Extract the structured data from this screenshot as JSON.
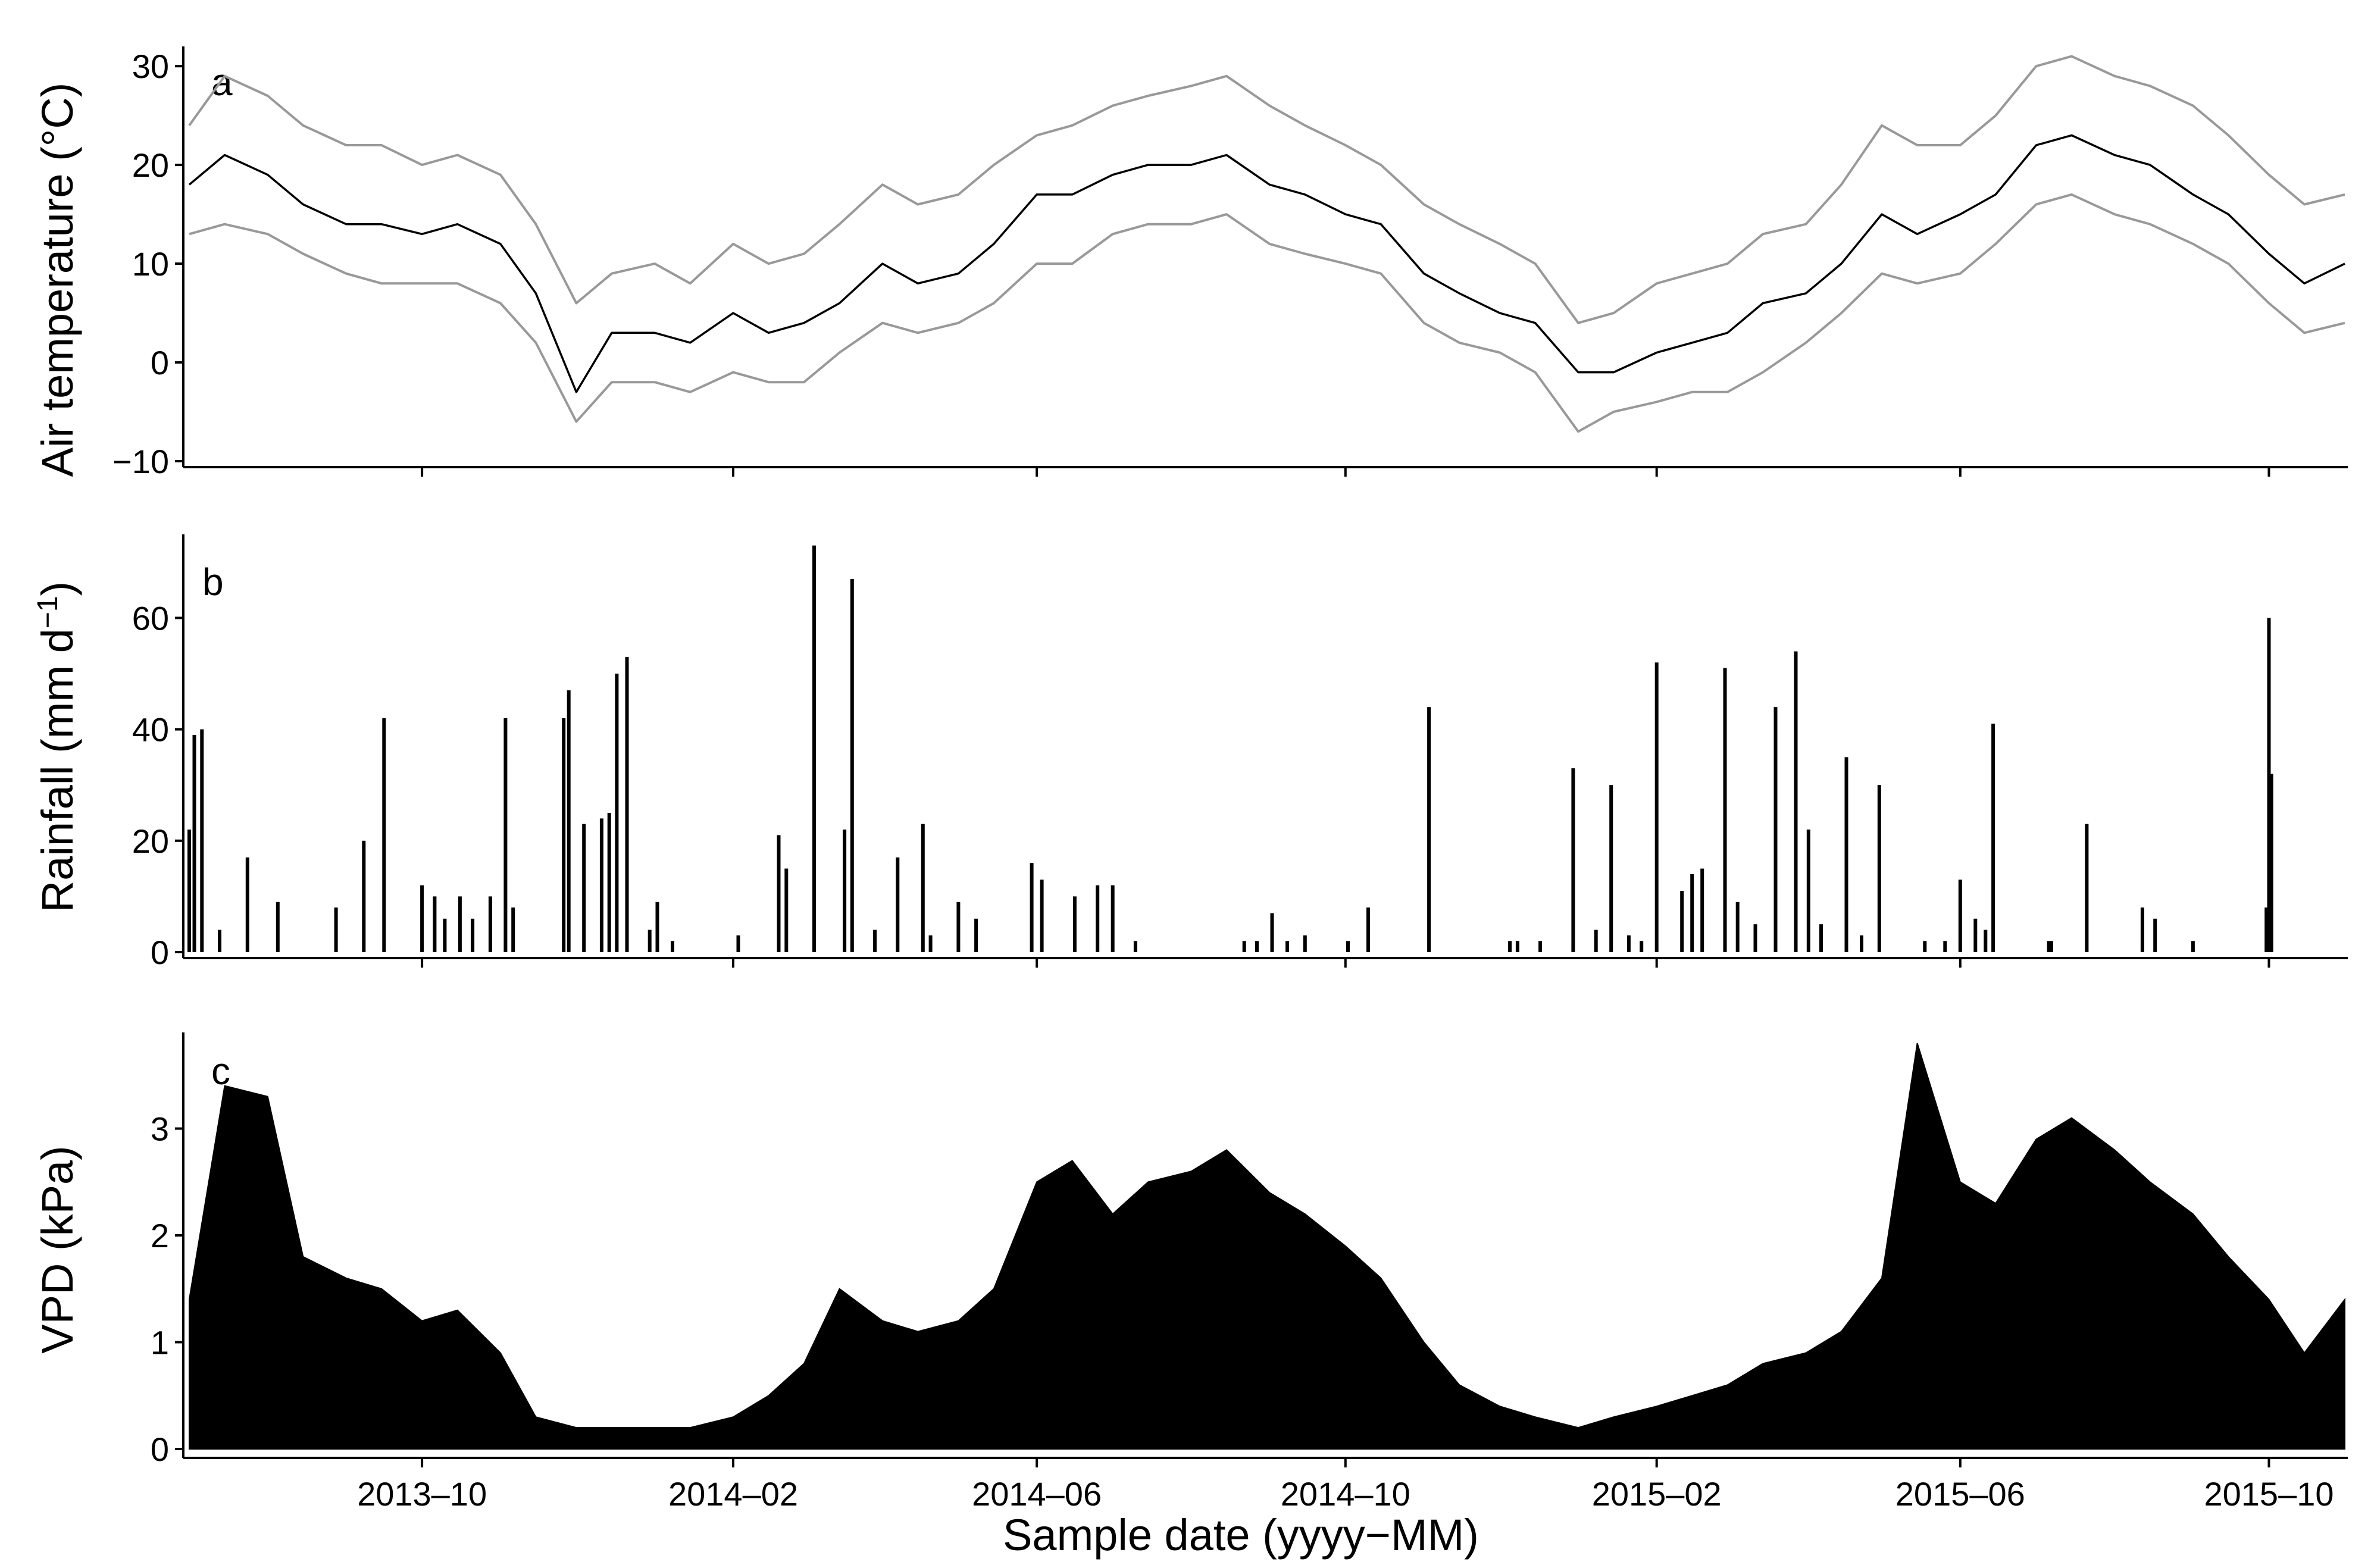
{
  "chart_data": [
    {
      "type": "line",
      "panel_label": "a",
      "ylabel": "Air temperature (°C)",
      "ylim": [
        -10,
        32
      ],
      "yticks": [
        -10,
        0,
        10,
        20,
        30
      ],
      "ytick_labels": [
        "−10",
        "0",
        "10",
        "20",
        "30"
      ],
      "date_range": [
        "2013-07-01",
        "2015-10-31"
      ],
      "series": [
        {
          "role": "daily maximum",
          "color": "#999999",
          "x": [
            "2013-07-01",
            "2013-07-15",
            "2013-08-01",
            "2013-08-15",
            "2013-09-01",
            "2013-09-15",
            "2013-10-01",
            "2013-10-15",
            "2013-11-01",
            "2013-11-15",
            "2013-12-01",
            "2013-12-15",
            "2014-01-01",
            "2014-01-15",
            "2014-02-01",
            "2014-02-15",
            "2014-03-01",
            "2014-03-15",
            "2014-04-01",
            "2014-04-15",
            "2014-05-01",
            "2014-05-15",
            "2014-06-01",
            "2014-06-15",
            "2014-07-01",
            "2014-07-15",
            "2014-08-01",
            "2014-08-15",
            "2014-09-01",
            "2014-09-15",
            "2014-10-01",
            "2014-10-15",
            "2014-11-01",
            "2014-11-15",
            "2014-12-01",
            "2014-12-15",
            "2015-01-01",
            "2015-01-15",
            "2015-02-01",
            "2015-02-15",
            "2015-03-01",
            "2015-03-15",
            "2015-04-01",
            "2015-04-15",
            "2015-05-01",
            "2015-05-15",
            "2015-06-01",
            "2015-06-15",
            "2015-07-01",
            "2015-07-15",
            "2015-08-01",
            "2015-08-15",
            "2015-09-01",
            "2015-09-15",
            "2015-10-01",
            "2015-10-15",
            "2015-10-31"
          ],
          "values": [
            24,
            29,
            27,
            24,
            22,
            22,
            20,
            21,
            19,
            14,
            6,
            9,
            10,
            8,
            12,
            10,
            11,
            14,
            18,
            16,
            17,
            20,
            23,
            24,
            26,
            27,
            28,
            29,
            26,
            24,
            22,
            20,
            16,
            14,
            12,
            10,
            4,
            5,
            8,
            9,
            10,
            13,
            14,
            18,
            24,
            22,
            22,
            25,
            30,
            31,
            29,
            28,
            26,
            23,
            19,
            16,
            17
          ]
        },
        {
          "role": "daily mean",
          "color": "#000000",
          "x": [
            "2013-07-01",
            "2013-07-15",
            "2013-08-01",
            "2013-08-15",
            "2013-09-01",
            "2013-09-15",
            "2013-10-01",
            "2013-10-15",
            "2013-11-01",
            "2013-11-15",
            "2013-12-01",
            "2013-12-15",
            "2014-01-01",
            "2014-01-15",
            "2014-02-01",
            "2014-02-15",
            "2014-03-01",
            "2014-03-15",
            "2014-04-01",
            "2014-04-15",
            "2014-05-01",
            "2014-05-15",
            "2014-06-01",
            "2014-06-15",
            "2014-07-01",
            "2014-07-15",
            "2014-08-01",
            "2014-08-15",
            "2014-09-01",
            "2014-09-15",
            "2014-10-01",
            "2014-10-15",
            "2014-11-01",
            "2014-11-15",
            "2014-12-01",
            "2014-12-15",
            "2015-01-01",
            "2015-01-15",
            "2015-02-01",
            "2015-02-15",
            "2015-03-01",
            "2015-03-15",
            "2015-04-01",
            "2015-04-15",
            "2015-05-01",
            "2015-05-15",
            "2015-06-01",
            "2015-06-15",
            "2015-07-01",
            "2015-07-15",
            "2015-08-01",
            "2015-08-15",
            "2015-09-01",
            "2015-09-15",
            "2015-10-01",
            "2015-10-15",
            "2015-10-31"
          ],
          "values": [
            18,
            21,
            19,
            16,
            14,
            14,
            13,
            14,
            12,
            7,
            -3,
            3,
            3,
            2,
            5,
            3,
            4,
            6,
            10,
            8,
            9,
            12,
            17,
            17,
            19,
            20,
            20,
            21,
            18,
            17,
            15,
            14,
            9,
            7,
            5,
            4,
            -1,
            -1,
            1,
            2,
            3,
            6,
            7,
            10,
            15,
            13,
            15,
            17,
            22,
            23,
            21,
            20,
            17,
            15,
            11,
            8,
            10
          ]
        },
        {
          "role": "daily minimum",
          "color": "#999999",
          "x": [
            "2013-07-01",
            "2013-07-15",
            "2013-08-01",
            "2013-08-15",
            "2013-09-01",
            "2013-09-15",
            "2013-10-01",
            "2013-10-15",
            "2013-11-01",
            "2013-11-15",
            "2013-12-01",
            "2013-12-15",
            "2014-01-01",
            "2014-01-15",
            "2014-02-01",
            "2014-02-15",
            "2014-03-01",
            "2014-03-15",
            "2014-04-01",
            "2014-04-15",
            "2014-05-01",
            "2014-05-15",
            "2014-06-01",
            "2014-06-15",
            "2014-07-01",
            "2014-07-15",
            "2014-08-01",
            "2014-08-15",
            "2014-09-01",
            "2014-09-15",
            "2014-10-01",
            "2014-10-15",
            "2014-11-01",
            "2014-11-15",
            "2014-12-01",
            "2014-12-15",
            "2015-01-01",
            "2015-01-15",
            "2015-02-01",
            "2015-02-15",
            "2015-03-01",
            "2015-03-15",
            "2015-04-01",
            "2015-04-15",
            "2015-05-01",
            "2015-05-15",
            "2015-06-01",
            "2015-06-15",
            "2015-07-01",
            "2015-07-15",
            "2015-08-01",
            "2015-08-15",
            "2015-09-01",
            "2015-09-15",
            "2015-10-01",
            "2015-10-15",
            "2015-10-31"
          ],
          "values": [
            13,
            14,
            13,
            11,
            9,
            8,
            8,
            8,
            6,
            2,
            -6,
            -2,
            -2,
            -3,
            -1,
            -2,
            -2,
            1,
            4,
            3,
            4,
            6,
            10,
            10,
            13,
            14,
            14,
            15,
            12,
            11,
            10,
            9,
            4,
            2,
            1,
            -1,
            -7,
            -5,
            -4,
            -3,
            -3,
            -1,
            2,
            5,
            9,
            8,
            9,
            12,
            16,
            17,
            15,
            14,
            12,
            10,
            6,
            3,
            4
          ]
        }
      ]
    },
    {
      "type": "bar",
      "panel_label": "b",
      "ylabel": "Rainfall (mm d",
      "ylabel_superscript": "−1",
      "ylabel_suffix": ")",
      "ylim": [
        0,
        75
      ],
      "yticks": [
        0,
        20,
        40,
        60
      ],
      "ytick_labels": [
        "0",
        "20",
        "40",
        "60"
      ],
      "date_range": [
        "2013-07-01",
        "2015-10-31"
      ],
      "color": "#000000",
      "x": [
        "2013-07-01",
        "2013-07-03",
        "2013-07-06",
        "2013-07-13",
        "2013-07-24",
        "2013-08-05",
        "2013-08-28",
        "2013-09-08",
        "2013-09-16",
        "2013-10-01",
        "2013-10-06",
        "2013-10-10",
        "2013-10-16",
        "2013-10-21",
        "2013-10-28",
        "2013-11-03",
        "2013-11-06",
        "2013-11-26",
        "2013-11-28",
        "2013-12-04",
        "2013-12-11",
        "2013-12-14",
        "2013-12-17",
        "2013-12-21",
        "2013-12-30",
        "2014-01-02",
        "2014-01-08",
        "2014-02-03",
        "2014-02-19",
        "2014-02-22",
        "2014-03-05",
        "2014-03-17",
        "2014-03-20",
        "2014-03-29",
        "2014-04-07",
        "2014-04-17",
        "2014-04-20",
        "2014-05-01",
        "2014-05-08",
        "2014-05-30",
        "2014-06-03",
        "2014-06-16",
        "2014-06-25",
        "2014-07-01",
        "2014-07-10",
        "2014-08-22",
        "2014-08-27",
        "2014-09-02",
        "2014-09-08",
        "2014-09-15",
        "2014-10-02",
        "2014-10-10",
        "2014-11-03",
        "2014-12-05",
        "2014-12-08",
        "2014-12-17",
        "2014-12-30",
        "2015-01-08",
        "2015-01-14",
        "2015-01-21",
        "2015-01-26",
        "2015-02-01",
        "2015-02-11",
        "2015-02-15",
        "2015-02-19",
        "2015-02-28",
        "2015-03-05",
        "2015-03-12",
        "2015-03-20",
        "2015-03-28",
        "2015-04-02",
        "2015-04-07",
        "2015-04-17",
        "2015-04-23",
        "2015-04-30",
        "2015-05-18",
        "2015-05-26",
        "2015-06-01",
        "2015-06-07",
        "2015-06-11",
        "2015-06-14",
        "2015-07-06",
        "2015-07-07",
        "2015-07-21",
        "2015-08-12",
        "2015-08-17",
        "2015-09-01",
        "2015-09-30",
        "2015-10-01",
        "2015-10-02"
      ],
      "values": [
        22,
        39,
        40,
        4,
        17,
        9,
        8,
        20,
        42,
        12,
        10,
        6,
        10,
        6,
        10,
        42,
        8,
        42,
        47,
        23,
        24,
        25,
        50,
        53,
        4,
        9,
        2,
        3,
        21,
        15,
        73,
        22,
        67,
        4,
        17,
        23,
        3,
        9,
        6,
        16,
        13,
        10,
        12,
        12,
        2,
        2,
        2,
        7,
        2,
        3,
        2,
        8,
        44,
        2,
        2,
        2,
        33,
        4,
        30,
        3,
        2,
        52,
        11,
        14,
        15,
        51,
        9,
        5,
        44,
        54,
        22,
        5,
        35,
        3,
        30,
        2,
        2,
        13,
        6,
        4,
        41,
        2,
        2,
        23,
        8,
        6,
        2,
        8,
        60,
        32
      ]
    },
    {
      "type": "area",
      "panel_label": "c",
      "ylabel": "VPD (kPa)",
      "ylim": [
        0,
        3.9
      ],
      "yticks": [
        0,
        1,
        2,
        3
      ],
      "ytick_labels": [
        "0",
        "1",
        "2",
        "3"
      ],
      "date_range": [
        "2013-07-01",
        "2015-10-31"
      ],
      "color": "#000000",
      "x": [
        "2013-07-01",
        "2013-07-15",
        "2013-08-01",
        "2013-08-15",
        "2013-09-01",
        "2013-09-15",
        "2013-10-01",
        "2013-10-15",
        "2013-11-01",
        "2013-11-15",
        "2013-12-01",
        "2013-12-15",
        "2014-01-01",
        "2014-01-15",
        "2014-02-01",
        "2014-02-15",
        "2014-03-01",
        "2014-03-15",
        "2014-04-01",
        "2014-04-15",
        "2014-05-01",
        "2014-05-15",
        "2014-06-01",
        "2014-06-15",
        "2014-07-01",
        "2014-07-15",
        "2014-08-01",
        "2014-08-15",
        "2014-09-01",
        "2014-09-15",
        "2014-10-01",
        "2014-10-15",
        "2014-11-01",
        "2014-11-15",
        "2014-12-01",
        "2014-12-15",
        "2015-01-01",
        "2015-01-15",
        "2015-02-01",
        "2015-02-15",
        "2015-03-01",
        "2015-03-15",
        "2015-04-01",
        "2015-04-15",
        "2015-05-01",
        "2015-05-15",
        "2015-06-01",
        "2015-06-15",
        "2015-07-01",
        "2015-07-15",
        "2015-08-01",
        "2015-08-15",
        "2015-09-01",
        "2015-09-15",
        "2015-10-01",
        "2015-10-15",
        "2015-10-31"
      ],
      "values": [
        1.4,
        3.4,
        3.3,
        1.8,
        1.6,
        1.5,
        1.2,
        1.3,
        0.9,
        0.3,
        0.2,
        0.2,
        0.2,
        0.2,
        0.3,
        0.5,
        0.8,
        1.5,
        1.2,
        1.1,
        1.2,
        1.5,
        2.5,
        2.7,
        2.2,
        2.5,
        2.6,
        2.8,
        2.4,
        2.2,
        1.9,
        1.6,
        1.0,
        0.6,
        0.4,
        0.3,
        0.2,
        0.3,
        0.4,
        0.5,
        0.6,
        0.8,
        0.9,
        1.1,
        1.6,
        3.8,
        2.5,
        2.3,
        2.9,
        3.1,
        2.8,
        2.5,
        2.2,
        1.8,
        1.4,
        0.9,
        1.4
      ]
    }
  ],
  "x_axis": {
    "ticks": [
      "2013-10-01",
      "2014-02-01",
      "2014-06-01",
      "2014-10-01",
      "2015-02-01",
      "2015-06-01",
      "2015-10-01"
    ],
    "tick_labels": [
      "2013–10",
      "2014–02",
      "2014–06",
      "2014–10",
      "2015–02",
      "2015–06",
      "2015–10"
    ],
    "xlabel": "Sample date (yyyy−MM)"
  }
}
